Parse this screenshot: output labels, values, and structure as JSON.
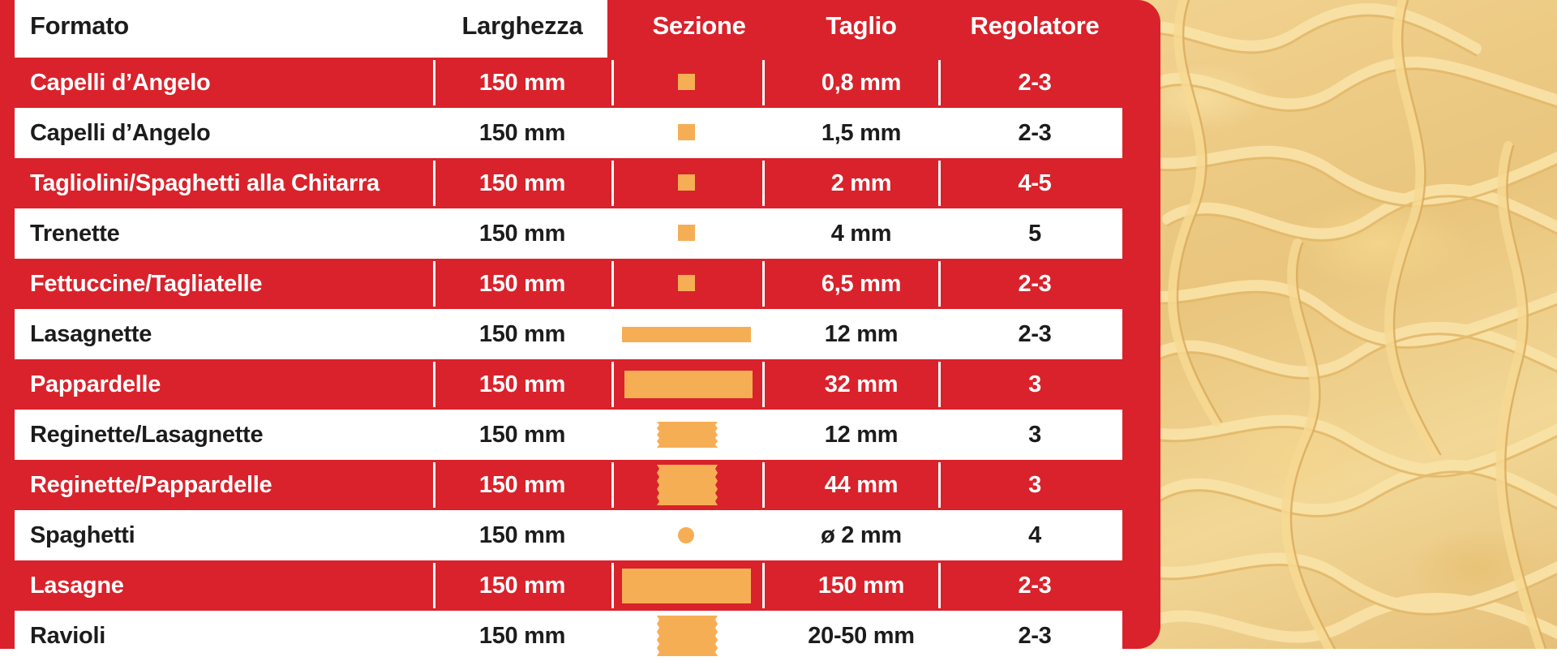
{
  "colors": {
    "red": "#d9222b",
    "white": "#ffffff",
    "dark_text": "#1c1c1c",
    "section_shape": "#f6ae55"
  },
  "headers": {
    "format": "Formato",
    "width": "Larghezza",
    "section": "Sezione",
    "cut": "Taglio",
    "regulator": "Regolatore"
  },
  "rows": [
    {
      "format": "Capelli d’Angelo",
      "width": "150 mm",
      "section": "square",
      "cut": "0,8 mm",
      "regulator": "2-3"
    },
    {
      "format": "Capelli d’Angelo",
      "width": "150 mm",
      "section": "square",
      "cut": "1,5 mm",
      "regulator": "2-3"
    },
    {
      "format": "Tagliolini/Spaghetti alla Chitarra",
      "width": "150 mm",
      "section": "square",
      "cut": "2 mm",
      "regulator": "4-5"
    },
    {
      "format": "Trenette",
      "width": "150 mm",
      "section": "square",
      "cut": "4 mm",
      "regulator": "5"
    },
    {
      "format": "Fettuccine/Tagliatelle",
      "width": "150 mm",
      "section": "square",
      "cut": "6,5 mm",
      "regulator": "2-3"
    },
    {
      "format": "Lasagnette",
      "width": "150 mm",
      "section": "thin-bar",
      "cut": "12 mm",
      "regulator": "2-3"
    },
    {
      "format": "Pappardelle",
      "width": "150 mm",
      "section": "bar",
      "cut": "32 mm",
      "regulator": "3"
    },
    {
      "format": "Reginette/Lasagnette",
      "width": "150 mm",
      "section": "wavy-small",
      "cut": "12 mm",
      "regulator": "3"
    },
    {
      "format": "Reginette/Pappardelle",
      "width": "150 mm",
      "section": "wavy-tall",
      "cut": "44 mm",
      "regulator": "3"
    },
    {
      "format": "Spaghetti",
      "width": "150 mm",
      "section": "circle",
      "cut": "ø 2 mm",
      "regulator": "4"
    },
    {
      "format": "Lasagne",
      "width": "150 mm",
      "section": "big-bar",
      "cut": "150 mm",
      "regulator": "2-3"
    },
    {
      "format": "Ravioli",
      "width": "150 mm",
      "section": "wavy-tall",
      "cut": "20-50 mm",
      "regulator": "2-3"
    }
  ]
}
